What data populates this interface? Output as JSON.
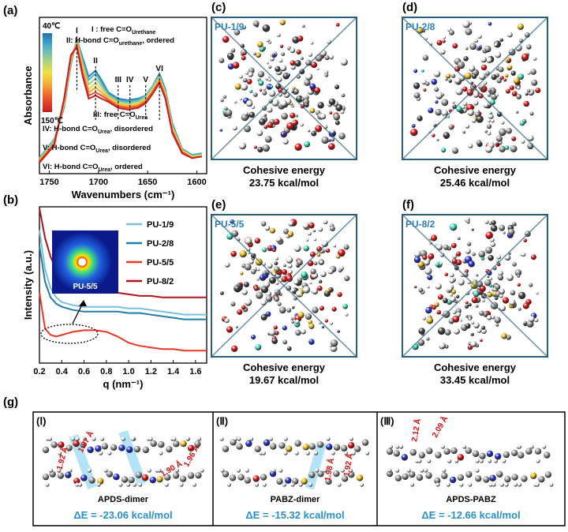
{
  "chart_data": [
    {
      "type": "line",
      "panel": "(a)",
      "x_label": "Wavenumbers (cm⁻¹)",
      "y_label": "Absorbance",
      "x": [
        1760,
        1745,
        1735,
        1728,
        1722,
        1716,
        1710,
        1703,
        1697,
        1690,
        1680,
        1670,
        1660,
        1652,
        1645,
        1638,
        1632,
        1625,
        1615,
        1605,
        1595
      ],
      "xlim": [
        1760,
        1590
      ],
      "xticks": [
        1750,
        1700,
        1650,
        1600
      ],
      "ylim": [
        0,
        1
      ],
      "colorbar": {
        "colors": [
          "#1f6fb8",
          "#4fb0c8",
          "#9fd08a",
          "#f0e040",
          "#f4a23a",
          "#e8502a",
          "#c81e1e"
        ],
        "labels": [
          "40℃",
          "150℃"
        ]
      },
      "series": [
        {
          "color": "#2a7fc0",
          "values": [
            0.1,
            0.22,
            0.42,
            0.7,
            0.86,
            0.74,
            0.62,
            0.66,
            0.6,
            0.52,
            0.48,
            0.47,
            0.48,
            0.5,
            0.56,
            0.64,
            0.54,
            0.32,
            0.16,
            0.12,
            0.13
          ]
        },
        {
          "color": "#4fb0c8",
          "values": [
            0.1,
            0.22,
            0.43,
            0.71,
            0.86,
            0.72,
            0.6,
            0.64,
            0.58,
            0.51,
            0.47,
            0.46,
            0.47,
            0.5,
            0.56,
            0.63,
            0.53,
            0.31,
            0.16,
            0.12,
            0.13
          ]
        },
        {
          "color": "#8fcf9a",
          "values": [
            0.09,
            0.21,
            0.44,
            0.72,
            0.85,
            0.7,
            0.57,
            0.61,
            0.56,
            0.5,
            0.46,
            0.45,
            0.46,
            0.49,
            0.55,
            0.62,
            0.52,
            0.3,
            0.15,
            0.11,
            0.12
          ]
        },
        {
          "color": "#e8d84a",
          "values": [
            0.09,
            0.2,
            0.45,
            0.73,
            0.84,
            0.68,
            0.54,
            0.58,
            0.54,
            0.49,
            0.45,
            0.44,
            0.45,
            0.48,
            0.54,
            0.61,
            0.51,
            0.29,
            0.15,
            0.11,
            0.12
          ]
        },
        {
          "color": "#f4a23a",
          "values": [
            0.08,
            0.2,
            0.46,
            0.74,
            0.83,
            0.66,
            0.52,
            0.55,
            0.52,
            0.48,
            0.44,
            0.43,
            0.44,
            0.47,
            0.53,
            0.6,
            0.5,
            0.28,
            0.14,
            0.1,
            0.11
          ]
        },
        {
          "color": "#e8502a",
          "values": [
            0.08,
            0.19,
            0.47,
            0.75,
            0.82,
            0.64,
            0.5,
            0.52,
            0.5,
            0.47,
            0.43,
            0.42,
            0.43,
            0.46,
            0.52,
            0.59,
            0.49,
            0.27,
            0.14,
            0.1,
            0.11
          ]
        },
        {
          "color": "#c81e1e",
          "values": [
            0.07,
            0.18,
            0.48,
            0.76,
            0.81,
            0.62,
            0.48,
            0.5,
            0.48,
            0.46,
            0.42,
            0.41,
            0.42,
            0.45,
            0.51,
            0.58,
            0.48,
            0.26,
            0.13,
            0.1,
            0.11
          ]
        }
      ],
      "peaks": [
        {
          "label": "I",
          "x": 1722
        },
        {
          "label": "II",
          "x": 1703
        },
        {
          "label": "III",
          "x": 1680
        },
        {
          "label": "IV",
          "x": 1668
        },
        {
          "label": "V",
          "x": 1652
        },
        {
          "label": "VI",
          "x": 1638
        }
      ],
      "annotations": [
        {
          "text": "I : free C=O",
          "sub": "Urethane"
        },
        {
          "text": "II: H-bond C=O",
          "sub": "urethane",
          "tail": ", ordered"
        },
        {
          "text": "III: free C=O",
          "sub": "Urea"
        },
        {
          "text": "IV: H-bond C=O",
          "sub": "Urea",
          "tail": ", disordered"
        },
        {
          "text": "V: H-bond C=O",
          "sub": "Urea",
          "tail": ", disordered"
        },
        {
          "text": "VI: H-bond C=O",
          "sub": "Urea",
          "tail": ", ordered"
        }
      ]
    },
    {
      "type": "line",
      "panel": "(b)",
      "x_label": "q (nm⁻¹)",
      "y_label": "Intensity (a.u.)",
      "x": [
        0.2,
        0.25,
        0.3,
        0.35,
        0.4,
        0.5,
        0.6,
        0.7,
        0.8,
        0.9,
        1.0,
        1.1,
        1.2,
        1.3,
        1.4,
        1.5,
        1.6,
        1.7
      ],
      "xlim": [
        0.2,
        1.7
      ],
      "xticks": [
        0.2,
        0.4,
        0.6,
        0.8,
        {
          "value": 1,
          "label": "1.0"
        },
        1.2,
        1.4,
        1.6
      ],
      "ylim": [
        0,
        1
      ],
      "legend": "upper right",
      "series": [
        {
          "name": "PU-1/9",
          "color": "#7cc0d8",
          "values": [
            0.85,
            0.6,
            0.48,
            0.42,
            0.39,
            0.37,
            0.36,
            0.36,
            0.36,
            0.36,
            0.35,
            0.35,
            0.34,
            0.33,
            0.32,
            0.31,
            0.31,
            0.31
          ]
        },
        {
          "name": "PU-2/8",
          "color": "#1f7fa8",
          "values": [
            0.75,
            0.52,
            0.42,
            0.38,
            0.36,
            0.34,
            0.33,
            0.33,
            0.33,
            0.33,
            0.32,
            0.32,
            0.31,
            0.3,
            0.29,
            0.28,
            0.28,
            0.28
          ]
        },
        {
          "name": "PU-5/5",
          "color": "#e8382a",
          "values": [
            0.45,
            0.22,
            0.18,
            0.17,
            0.18,
            0.2,
            0.21,
            0.21,
            0.2,
            0.17,
            0.13,
            0.11,
            0.1,
            0.09,
            0.09,
            0.08,
            0.08,
            0.08
          ]
        },
        {
          "name": "PU-8/2",
          "color": "#b0141a",
          "values": [
            0.99,
            0.8,
            0.68,
            0.6,
            0.56,
            0.51,
            0.48,
            0.47,
            0.46,
            0.45,
            0.44,
            0.43,
            0.43,
            0.42,
            0.42,
            0.42,
            0.42,
            0.42
          ]
        }
      ],
      "inset_label": "PU-5/5"
    }
  ],
  "models": [
    {
      "panel": "(c)",
      "name": "PU-1/9",
      "caption": "Cohesive energy",
      "energy": "23.75 kcal/mol"
    },
    {
      "panel": "(d)",
      "name": "PU-2/8",
      "caption": "Cohesive energy",
      "energy": "25.46 kcal/mol"
    },
    {
      "panel": "(e)",
      "name": "PU-5/5",
      "caption": "Cohesive energy",
      "energy": "19.67 kcal/mol"
    },
    {
      "panel": "(f)",
      "name": "PU-8/2",
      "caption": "Cohesive energy",
      "energy": "33.45 kcal/mol"
    }
  ],
  "dimers": {
    "panel": "(g)",
    "items": [
      {
        "label": "(Ⅰ)",
        "name": "APDS-dimer",
        "energy": "ΔE = -23.06 kcal/mol",
        "distances": [
          "1.92 Å",
          "1.87 Å",
          "1.90 Å",
          "1.96 Å"
        ]
      },
      {
        "label": "(Ⅱ)",
        "name": "PABZ-dimer",
        "energy": "ΔE = -15.32 kcal/mol",
        "distances": [
          "1.98 Å",
          "1.92 Å"
        ]
      },
      {
        "label": "(Ⅲ)",
        "name": "APDS-PABZ",
        "energy": "ΔE = -12.66 kcal/mol",
        "distances": [
          "2.12 Å",
          "2.09 Å"
        ]
      }
    ]
  }
}
